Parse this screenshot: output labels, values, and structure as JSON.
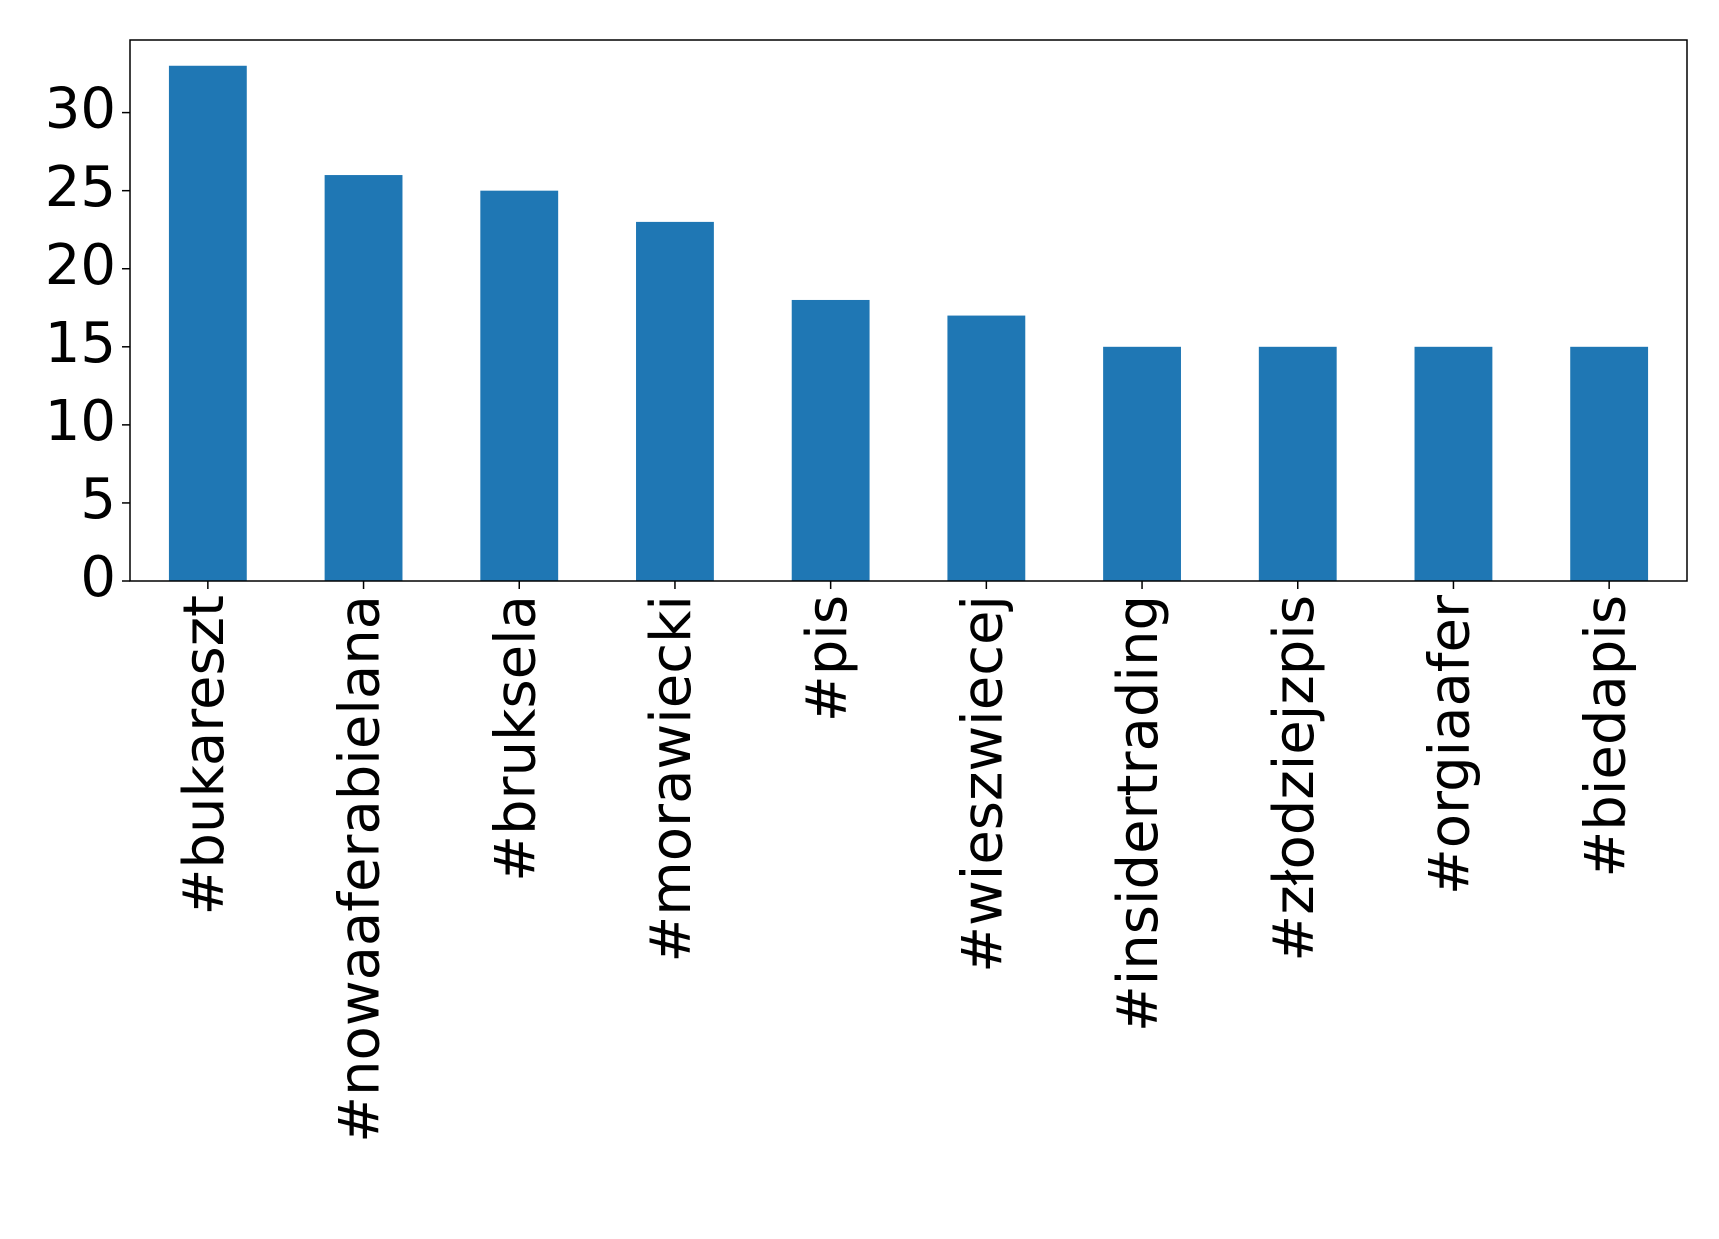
{
  "chart_data": {
    "type": "bar",
    "categories": [
      "#bukareszt",
      "#nowaaferabielana",
      "#bruksela",
      "#morawiecki",
      "#pis",
      "#wieszwiecej",
      "#insidertrading",
      "#złodziejzpis",
      "#orgiaafer",
      "#biedapis"
    ],
    "values": [
      33,
      26,
      25,
      23,
      18,
      17,
      15,
      15,
      15,
      15
    ],
    "color": "#1f77b4",
    "ylim": [
      0,
      34.65
    ],
    "yticks": [
      0,
      5,
      10,
      15,
      20,
      25,
      30
    ],
    "grid": false
  }
}
